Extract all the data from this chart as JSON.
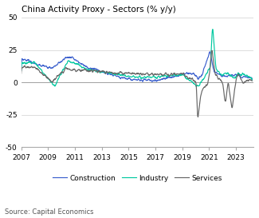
{
  "title": "China Activity Proxy - Sectors (% y/y)",
  "source": "Source: Capital Economics",
  "xlim": [
    2007.0,
    2024.3
  ],
  "ylim": [
    -50,
    50
  ],
  "yticks": [
    -50,
    -25,
    0,
    25,
    50
  ],
  "xticks": [
    2007,
    2009,
    2011,
    2013,
    2015,
    2017,
    2019,
    2021,
    2023
  ],
  "colors": {
    "construction": "#3a5fcd",
    "industry": "#00c8a0",
    "services": "#666666"
  },
  "legend": [
    "Construction",
    "Industry",
    "Services"
  ],
  "background": "#ffffff",
  "grid_color": "#d0d0d0"
}
